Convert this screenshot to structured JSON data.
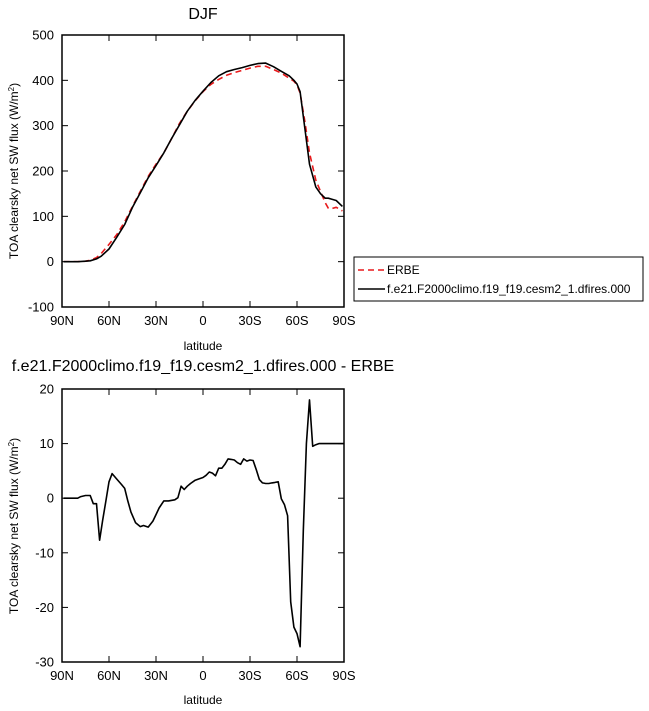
{
  "chart_data": [
    {
      "type": "line",
      "title": "DJF",
      "xlabel": "latitude",
      "ylabel_main": "TOA clearsky net SW flux (W/m",
      "ylabel_sup": "2",
      "ylabel_end": ")",
      "xlim": [
        -90,
        90
      ],
      "ylim": [
        -100,
        500
      ],
      "xticks": [
        -90,
        -60,
        -30,
        0,
        30,
        60,
        90
      ],
      "xtick_labels": [
        "90N",
        "60N",
        "30N",
        "0",
        "30S",
        "60S",
        "90S"
      ],
      "yticks": [
        -100,
        0,
        100,
        200,
        300,
        400,
        500
      ],
      "ytick_labels": [
        "-100",
        "0",
        "100",
        "200",
        "300",
        "400",
        "500"
      ],
      "legend_position": "right",
      "series": [
        {
          "name": "ERBE",
          "color": "#e8191b",
          "dash": "dashed",
          "x": [
            -89,
            -85,
            -80,
            -75,
            -72,
            -68,
            -65,
            -60,
            -55,
            -50,
            -45,
            -40,
            -35,
            -30,
            -25,
            -20,
            -15,
            -10,
            -5,
            0,
            5,
            10,
            15,
            20,
            25,
            30,
            35,
            40,
            45,
            50,
            55,
            58,
            60,
            62,
            65,
            68,
            72,
            75,
            78,
            80,
            82,
            85,
            89
          ],
          "y": [
            0,
            0,
            0,
            1,
            3,
            9,
            18,
            38,
            60,
            88,
            122,
            155,
            188,
            215,
            240,
            272,
            305,
            332,
            355,
            375,
            391,
            402,
            411,
            417,
            422,
            427,
            431,
            431,
            424,
            416,
            405,
            398,
            390,
            372,
            310,
            240,
            180,
            155,
            130,
            118,
            117,
            120,
            112
          ]
        },
        {
          "name": "f.e21.F2000climo.f19_f19.cesm2_1.dfires.000",
          "color": "#000000",
          "dash": "solid",
          "x": [
            -89,
            -85,
            -80,
            -75,
            -72,
            -68,
            -65,
            -60,
            -55,
            -50,
            -45,
            -40,
            -35,
            -30,
            -25,
            -20,
            -15,
            -10,
            -5,
            0,
            5,
            10,
            15,
            20,
            25,
            30,
            35,
            40,
            45,
            50,
            55,
            58,
            60,
            62,
            65,
            68,
            72,
            75,
            78,
            80,
            82,
            85,
            89
          ],
          "y": [
            0,
            0,
            0,
            1,
            2,
            6,
            12,
            28,
            54,
            82,
            120,
            152,
            185,
            212,
            240,
            272,
            302,
            332,
            356,
            376,
            395,
            410,
            419,
            424,
            428,
            433,
            437,
            438,
            430,
            420,
            410,
            400,
            392,
            375,
            295,
            215,
            165,
            150,
            140,
            140,
            138,
            135,
            122
          ]
        }
      ]
    },
    {
      "type": "line",
      "title": "f.e21.F2000climo.f19_f19.cesm2_1.dfires.000 - ERBE",
      "xlabel": "latitude",
      "ylabel_main": "TOA clearsky net SW flux (W/m",
      "ylabel_sup": "2",
      "ylabel_end": ")",
      "xlim": [
        -90,
        90
      ],
      "ylim": [
        -30,
        20
      ],
      "xticks": [
        -90,
        -60,
        -30,
        0,
        30,
        60,
        90
      ],
      "xtick_labels": [
        "90N",
        "60N",
        "30N",
        "0",
        "30S",
        "60S",
        "90S"
      ],
      "yticks": [
        -30,
        -20,
        -10,
        0,
        10,
        20
      ],
      "ytick_labels": [
        "-30",
        "-20",
        "-10",
        "0",
        "10",
        "20"
      ],
      "series": [
        {
          "name": "",
          "color": "#000000",
          "dash": "solid",
          "x": [
            -89,
            -85,
            -82,
            -80,
            -78,
            -75,
            -72,
            -70,
            -68,
            -66,
            -64,
            -62,
            -60,
            -58,
            -55,
            -52,
            -50,
            -48,
            -46,
            -43,
            -40,
            -38,
            -35,
            -32,
            -30,
            -28,
            -25,
            -22,
            -18,
            -16,
            -14,
            -12,
            -10,
            -8,
            -5,
            -3,
            0,
            2,
            4,
            6,
            8,
            10,
            12,
            14,
            16,
            18,
            20,
            22,
            24,
            26,
            28,
            30,
            32,
            34,
            36,
            38,
            40,
            42,
            44,
            46,
            48,
            50,
            52,
            54,
            56,
            58,
            60,
            62,
            64,
            66,
            68,
            70,
            72,
            74,
            76,
            78,
            80,
            82,
            84,
            86,
            88,
            90
          ],
          "y": [
            0,
            0,
            0,
            0,
            0.3,
            0.5,
            0.5,
            -1,
            -1,
            -7.7,
            -4,
            -0.5,
            3,
            4.5,
            3.5,
            2.5,
            1.8,
            -0.5,
            -2.5,
            -4.5,
            -5.2,
            -5.0,
            -5.3,
            -4.2,
            -3,
            -1.8,
            -0.5,
            -0.5,
            -0.3,
            0.1,
            2.2,
            1.6,
            2.2,
            2.7,
            3.3,
            3.5,
            3.8,
            4.2,
            4.8,
            4.6,
            4.1,
            5.5,
            5.5,
            6.2,
            7.2,
            7.1,
            7.0,
            6.5,
            6.2,
            7.2,
            6.8,
            7.0,
            6.9,
            5.2,
            3.4,
            2.8,
            2.7,
            2.7,
            2.8,
            2.9,
            3.0,
            -0.1,
            -1.2,
            -3.2,
            -19,
            -23.6,
            -24.8,
            -27.2,
            -6,
            10,
            18,
            9.5,
            9.8,
            10,
            10,
            10,
            10,
            10,
            10,
            10,
            10,
            10
          ]
        }
      ]
    }
  ]
}
